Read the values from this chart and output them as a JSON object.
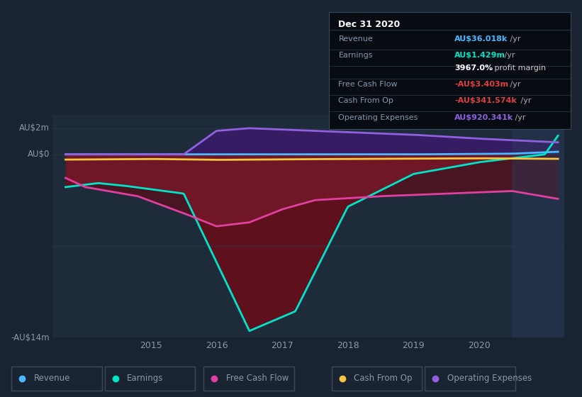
{
  "background_color": "#1a2332",
  "ax_facecolor": "#1e2b3a",
  "grid_color": "#2a3a4a",
  "text_color": "#8899aa",
  "ylabel_top": "AU$2m",
  "ylabel_zero": "AU$0",
  "ylabel_bottom": "-AU$14m",
  "ylim": [
    -14000000,
    3000000
  ],
  "xlim_start": 2013.5,
  "xlim_end": 2021.3,
  "x_ticks": [
    2015,
    2016,
    2017,
    2018,
    2019,
    2020
  ],
  "shaded_start": 2020.5,
  "colors": {
    "revenue": "#4db8ff",
    "earnings": "#00e5c8",
    "free_cash_flow": "#e040a0",
    "cash_from_op": "#f5c542",
    "operating_expenses": "#9060e0"
  },
  "legend": [
    {
      "label": "Revenue",
      "color": "#4db8ff"
    },
    {
      "label": "Earnings",
      "color": "#00e5c8"
    },
    {
      "label": "Free Cash Flow",
      "color": "#e040a0"
    },
    {
      "label": "Cash From Op",
      "color": "#f5c542"
    },
    {
      "label": "Operating Expenses",
      "color": "#9060e0"
    }
  ],
  "infobox": {
    "title": "Dec 31 2020",
    "rows": [
      {
        "label": "Revenue",
        "value": "AU$36.018k",
        "value_color": "#4db8ff",
        "suffix": " /yr"
      },
      {
        "label": "Earnings",
        "value": "AU$1.429m",
        "value_color": "#00e5c8",
        "suffix": " /yr"
      },
      {
        "label": "",
        "value": "3967.0%",
        "value_color": "#ffffff",
        "suffix": " profit margin",
        "suffix_color": "#cccccc"
      },
      {
        "label": "Free Cash Flow",
        "value": "-AU$3.403m",
        "value_color": "#e04040",
        "suffix": " /yr"
      },
      {
        "label": "Cash From Op",
        "value": "-AU$341.574k",
        "value_color": "#e04040",
        "suffix": " /yr"
      },
      {
        "label": "Operating Expenses",
        "value": "AU$920.341k",
        "value_color": "#9060e0",
        "suffix": " /yr"
      }
    ]
  }
}
